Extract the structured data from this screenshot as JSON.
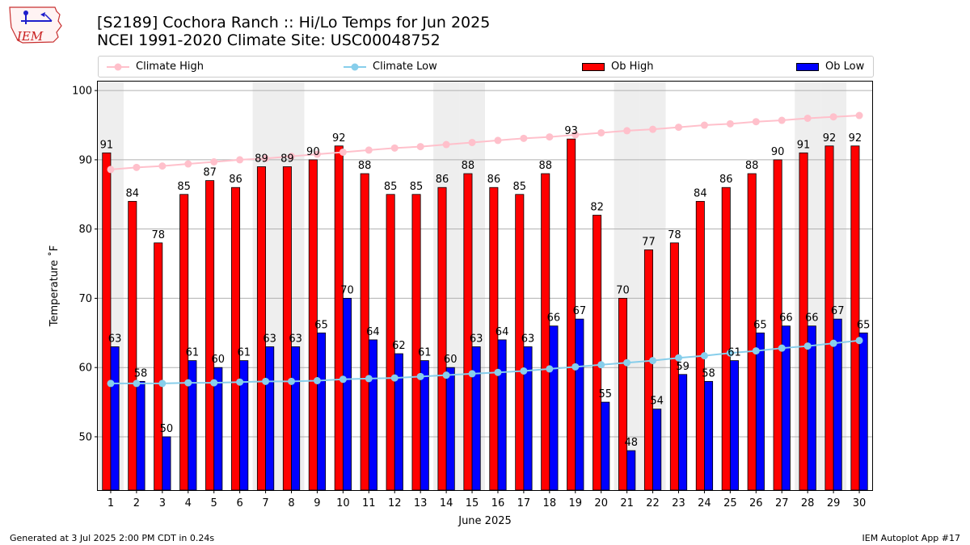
{
  "header": {
    "title": "[S2189] Cochora Ranch :: Hi/Lo Temps for Jun 2025",
    "subtitle": "NCEI 1991-2020 Climate Site: USC00048752",
    "logo_text": "IEM"
  },
  "footer": {
    "generated": "Generated at 3 Jul 2025 2:00 PM CDT in 0.24s",
    "app": "IEM Autoplot App #17"
  },
  "chart_data": {
    "type": "bar",
    "title": "[S2189] Cochora Ranch :: Hi/Lo Temps for Jun 2025",
    "subtitle": "NCEI 1991-2020 Climate Site: USC00048752",
    "xlabel": "June 2025",
    "ylabel": "Temperature ˚F",
    "ylim": [
      42.3,
      101.3
    ],
    "yticks": [
      50,
      60,
      70,
      80,
      90,
      100
    ],
    "categories": [
      "1",
      "2",
      "3",
      "4",
      "5",
      "6",
      "7",
      "8",
      "9",
      "10",
      "11",
      "12",
      "13",
      "14",
      "15",
      "16",
      "17",
      "18",
      "19",
      "20",
      "21",
      "22",
      "23",
      "24",
      "25",
      "26",
      "27",
      "28",
      "29",
      "30"
    ],
    "shaded_weekend_days": [
      1,
      7,
      8,
      14,
      15,
      21,
      22,
      28,
      29
    ],
    "grid": "horizontal",
    "legend_position": "top",
    "series": [
      {
        "name": "Climate High",
        "kind": "line",
        "color": "#ffc0cb",
        "values": [
          88.6,
          88.9,
          89.1,
          89.4,
          89.7,
          90.0,
          90.2,
          90.5,
          90.8,
          91.1,
          91.4,
          91.7,
          91.9,
          92.2,
          92.5,
          92.8,
          93.1,
          93.3,
          93.6,
          93.9,
          94.2,
          94.4,
          94.7,
          95.0,
          95.2,
          95.5,
          95.7,
          96.0,
          96.2,
          96.4
        ]
      },
      {
        "name": "Climate Low",
        "kind": "line",
        "color": "#87ceeb",
        "values": [
          57.7,
          57.7,
          57.7,
          57.8,
          57.8,
          57.9,
          58.0,
          58.0,
          58.1,
          58.3,
          58.4,
          58.5,
          58.7,
          58.9,
          59.1,
          59.3,
          59.5,
          59.8,
          60.1,
          60.4,
          60.7,
          61.0,
          61.4,
          61.7,
          62.1,
          62.4,
          62.8,
          63.1,
          63.5,
          63.9
        ]
      },
      {
        "name": "Ob High",
        "kind": "bar",
        "color": "#ff0000",
        "values": [
          91,
          84,
          78,
          85,
          87,
          86,
          89,
          89,
          90,
          92,
          88,
          85,
          85,
          86,
          88,
          86,
          85,
          88,
          93,
          82,
          70,
          77,
          78,
          84,
          86,
          88,
          90,
          91,
          92,
          92
        ]
      },
      {
        "name": "Ob Low",
        "kind": "bar",
        "color": "#0000ff",
        "values": [
          63,
          58,
          50,
          61,
          60,
          61,
          63,
          63,
          65,
          70,
          64,
          62,
          61,
          60,
          63,
          64,
          63,
          66,
          67,
          55,
          48,
          54,
          59,
          58,
          61,
          65,
          66,
          66,
          67,
          65
        ]
      }
    ]
  }
}
